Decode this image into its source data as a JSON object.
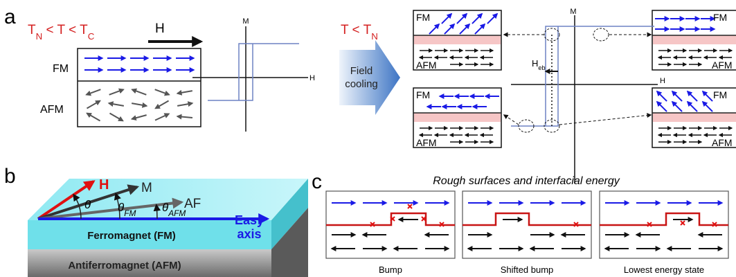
{
  "panel_a": {
    "label": "a",
    "condition": [
      "T",
      "N",
      " < T < T",
      "C"
    ],
    "field": "H",
    "layers": [
      "FM",
      "AFM"
    ],
    "loop_axes": {
      "y": "M",
      "x": "H"
    },
    "cooling_condition": [
      "T < T",
      "N"
    ],
    "arrow_text": [
      "Field",
      "cooling"
    ],
    "states": [
      {
        "fm": "FM",
        "afm": "AFM"
      },
      {
        "fm": "FM",
        "afm": "AFM"
      },
      {
        "fm": "FM",
        "afm": "AFM"
      },
      {
        "fm": "FM",
        "afm": "AFM"
      }
    ],
    "shifted_loop_axes": {
      "y": "M",
      "x": "H"
    },
    "exchange_bias": [
      "H",
      "eb"
    ]
  },
  "panel_b": {
    "label": "b",
    "vectors": [
      "H",
      "M",
      "AF"
    ],
    "angles": [
      {
        "symbol": "θ"
      },
      {
        "symbol": "θ",
        "sub": "FM"
      },
      {
        "symbol": "θ",
        "sub": "AFM"
      }
    ],
    "easy_axis": [
      "Easy",
      "axis"
    ],
    "layers": [
      "Ferromagnet (FM)",
      "Antiferromagnet (AFM)"
    ]
  },
  "panel_c": {
    "label": "c",
    "title": "Rough surfaces and interfacial energy",
    "captions": [
      "Bump",
      "Shifted bump",
      "Lowest energy state"
    ]
  }
}
